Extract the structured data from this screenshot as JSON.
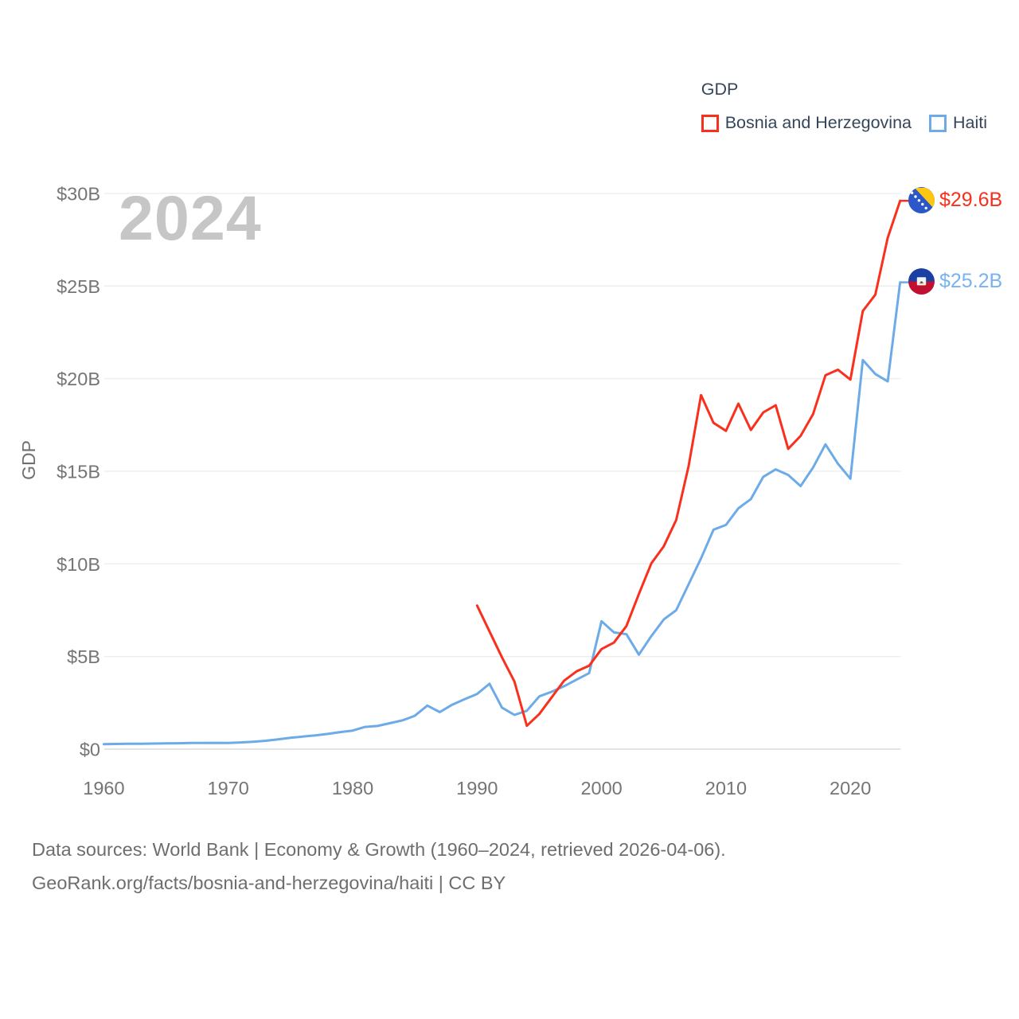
{
  "watermark": "2024",
  "legend": {
    "title": "GDP",
    "items": [
      {
        "label": "Bosnia and Herzegovina",
        "color": "#f8301d"
      },
      {
        "label": "Haiti",
        "color": "#6dabe8"
      }
    ]
  },
  "end_labels": [
    {
      "series": "Bosnia and Herzegovina",
      "value": "$29.6B",
      "color": "#f8301d",
      "flag_icon": "bosnia-and-herzegovina-flag-icon"
    },
    {
      "series": "Haiti",
      "value": "$25.2B",
      "color": "#79b3ef",
      "flag_icon": "haiti-flag-icon"
    }
  ],
  "footer": {
    "line1": "Data sources: World Bank | Economy & Growth (1960–2024, retrieved 2026-04-06).",
    "line2": "GeoRank.org/facts/bosnia-and-herzegovina/haiti | CC BY"
  },
  "chart_data": {
    "type": "line",
    "title": "GDP",
    "xlabel": "",
    "ylabel": "GDP",
    "unit": "billions of current US$",
    "x_range": [
      1960,
      2024
    ],
    "ylim": [
      0,
      30
    ],
    "grid": "horizontal-only",
    "legend_position": "top-right",
    "yticks": [
      {
        "value": 0,
        "label": "$0"
      },
      {
        "value": 5,
        "label": "$5B"
      },
      {
        "value": 10,
        "label": "$10B"
      },
      {
        "value": 15,
        "label": "$15B"
      },
      {
        "value": 20,
        "label": "$20B"
      },
      {
        "value": 25,
        "label": "$25B"
      },
      {
        "value": 30,
        "label": "$30B"
      }
    ],
    "xticks": [
      {
        "value": 1960,
        "label": "1960"
      },
      {
        "value": 1970,
        "label": "1970"
      },
      {
        "value": 1980,
        "label": "1980"
      },
      {
        "value": 1990,
        "label": "1990"
      },
      {
        "value": 2000,
        "label": "2000"
      },
      {
        "value": 2010,
        "label": "2010"
      },
      {
        "value": 2020,
        "label": "2020"
      }
    ],
    "series": [
      {
        "name": "Haiti",
        "color": "#6dabe8",
        "start_year": 1960,
        "end_label": "$25.2B",
        "values": [
          0.27,
          0.28,
          0.29,
          0.29,
          0.3,
          0.31,
          0.32,
          0.33,
          0.33,
          0.34,
          0.33,
          0.36,
          0.4,
          0.45,
          0.53,
          0.61,
          0.68,
          0.74,
          0.82,
          0.92,
          1.0,
          1.2,
          1.25,
          1.4,
          1.55,
          1.8,
          2.35,
          2.0,
          2.4,
          2.7,
          2.98,
          3.53,
          2.24,
          1.85,
          2.07,
          2.85,
          3.1,
          3.4,
          3.75,
          4.1,
          6.9,
          6.3,
          6.2,
          5.1,
          6.1,
          7.0,
          7.5,
          8.9,
          10.3,
          11.85,
          12.1,
          13.0,
          13.5,
          14.7,
          15.1,
          14.8,
          14.2,
          15.2,
          16.45,
          15.4,
          14.6,
          21.0,
          20.25,
          19.85,
          25.2
        ]
      },
      {
        "name": "Bosnia and Herzegovina",
        "color": "#f8301d",
        "start_year": 1990,
        "end_label": "$29.6B",
        "values": [
          7.75,
          6.35,
          4.95,
          3.65,
          1.26,
          1.9,
          2.8,
          3.7,
          4.2,
          4.5,
          5.4,
          5.75,
          6.65,
          8.37,
          10.02,
          10.95,
          12.37,
          15.28,
          19.11,
          17.61,
          17.18,
          18.65,
          17.23,
          18.18,
          18.56,
          16.21,
          16.91,
          18.08,
          20.18,
          20.48,
          19.95,
          23.65,
          24.53,
          27.6,
          29.6
        ]
      }
    ]
  }
}
